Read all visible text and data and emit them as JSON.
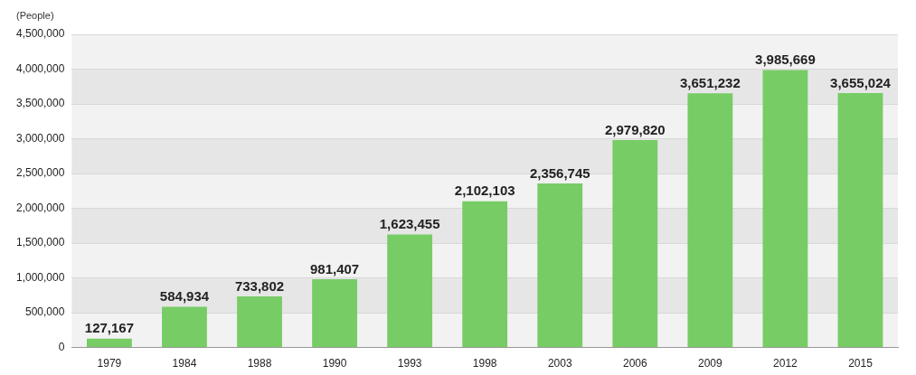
{
  "chart_data": {
    "type": "bar",
    "ylabel": "(People)",
    "categories": [
      "1979",
      "1984",
      "1988",
      "1990",
      "1993",
      "1998",
      "2003",
      "2006",
      "2009",
      "2012",
      "2015"
    ],
    "values": [
      127167,
      584934,
      733802,
      981407,
      1623455,
      2102103,
      2356745,
      2979820,
      3651232,
      3985669,
      3655024
    ],
    "value_labels": [
      "127,167",
      "584,934",
      "733,802",
      "981,407",
      "1,623,455",
      "2,102,103",
      "2,356,745",
      "2,979,820",
      "3,651,232",
      "3,985,669",
      "3,655,024"
    ],
    "color": "#77cc66",
    "ylim": [
      0,
      4500000
    ],
    "yticks": [
      0,
      {
        "value": 500000,
        "label": "500,000"
      },
      {
        "value": 1000000,
        "label": "1,000,000"
      },
      {
        "value": 1500000,
        "label": "1,500,000"
      },
      {
        "value": 2000000,
        "label": "2,000,000"
      },
      {
        "value": 2500000,
        "label": "2,500,000"
      },
      {
        "value": 3000000,
        "label": "3,000,000"
      },
      {
        "value": 3500000,
        "label": "3,500,000"
      },
      {
        "value": 4000000,
        "label": "4,000,000"
      },
      {
        "value": 4500000,
        "label": "4,500,000"
      }
    ],
    "grid": "y"
  }
}
